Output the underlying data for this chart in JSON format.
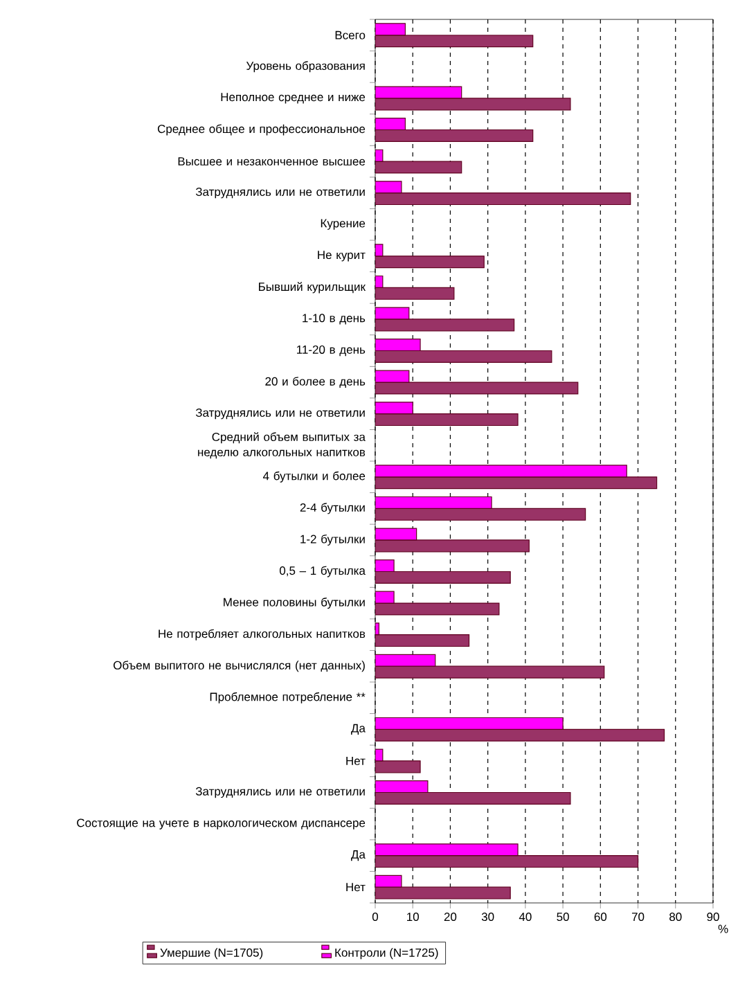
{
  "chart_data": {
    "type": "bar",
    "orientation": "horizontal",
    "categories": [
      "Всего",
      "Уровень образования",
      "Неполное среднее и ниже",
      "Среднее общее и профессиональное",
      "Высшее и незаконченное высшее",
      "Затруднялись или не ответили",
      "Курение",
      "Не курит",
      "Бывший курильщик",
      "1-10 в день",
      "11-20 в день",
      "20 и более в день",
      "Затруднялись или не ответили",
      "Средний объем выпитых за неделю алкогольных напитков",
      "4 бутылки и более",
      "2-4 бутылки",
      "1-2 бутылки",
      "0,5 – 1 бутылка",
      "Менее половины бутылки",
      "Не потребляет алкогольных напитков",
      "Объем выпитого не вычислялся (нет данных)",
      "Проблемное потребление **",
      "Да",
      "Нет",
      "Затруднялись или не ответили",
      "Состоящие на учете в наркологическом диспансере",
      "Да",
      "Нет"
    ],
    "series": [
      {
        "name": "Умершие (N=1705)",
        "color": "#993366",
        "values": [
          42,
          null,
          52,
          42,
          23,
          68,
          null,
          29,
          21,
          37,
          47,
          54,
          38,
          null,
          75,
          56,
          41,
          36,
          33,
          25,
          61,
          null,
          77,
          12,
          52,
          null,
          70,
          36
        ]
      },
      {
        "name": "Контроли (N=1725)",
        "color": "#ff00ff",
        "values": [
          8,
          null,
          23,
          8,
          2,
          7,
          null,
          2,
          2,
          9,
          12,
          9,
          10,
          null,
          67,
          31,
          11,
          5,
          5,
          1,
          16,
          null,
          50,
          2,
          14,
          null,
          38,
          7
        ]
      }
    ],
    "xlim": [
      0,
      90
    ],
    "xticks": [
      0,
      10,
      20,
      30,
      40,
      50,
      60,
      70,
      80,
      90
    ],
    "xlabel": "%",
    "grid": "x",
    "legend": "bottom"
  }
}
